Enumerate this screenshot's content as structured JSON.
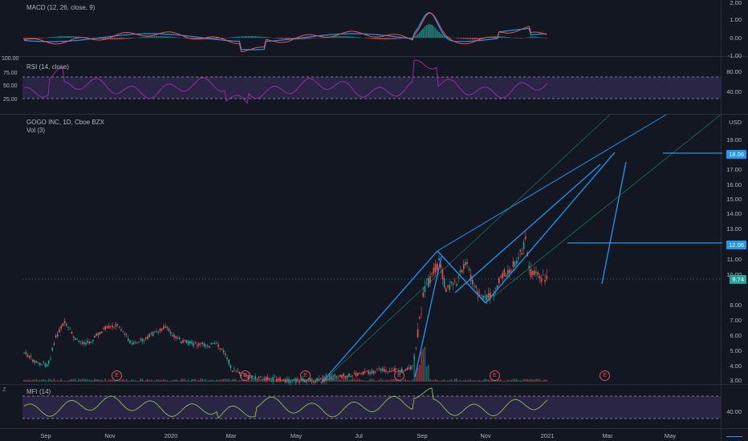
{
  "macd": {
    "title": "MACD (12, 26, close, 9)",
    "ticks": [
      "2.00",
      "1.00",
      "0.00",
      "-1.00"
    ]
  },
  "rsi": {
    "title": "RSI (14, close)",
    "left_tick": "100.00",
    "left_ticks": [
      "75.00",
      "50.00",
      "25.00"
    ],
    "ticks": [
      "80.00",
      "40.00"
    ]
  },
  "main": {
    "symbol": "GOGO INC, 1D, Cboe BZX",
    "volume": "Vol (3)",
    "currency": "USD",
    "ticks": [
      "19.00",
      "17.00",
      "16.00",
      "15.00",
      "14.00",
      "13.00",
      "11.00",
      "10.00",
      "8.00",
      "7.00",
      "6.00",
      "5.00",
      "4.00",
      "3.00"
    ],
    "badge_upper": "18.06",
    "badge_mid": "12.06",
    "badge_last": "9.74",
    "earnings_label": "E"
  },
  "mfi": {
    "title": "MFI (14)",
    "ticks": [
      "40.00"
    ]
  },
  "time_axis": {
    "labels": [
      "Sep",
      "Nov",
      "2020",
      "Mar",
      "May",
      "Jul",
      "Sep",
      "Nov",
      "2021",
      "Mar",
      "May"
    ]
  },
  "colors": {
    "up": "#26a69a",
    "down": "#ef5350",
    "drawing": "#2196f3",
    "rsi": "#9c27b0",
    "badge": "#2196f3",
    "last": "#26a69a"
  }
}
